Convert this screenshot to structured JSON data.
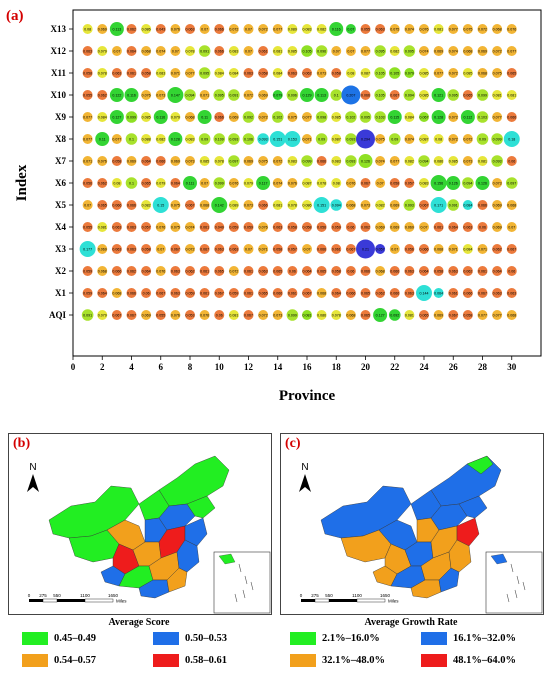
{
  "chart_data": [
    {
      "type": "scatter",
      "panel_label": "(a)",
      "xlabel": "Province",
      "ylabel": "Index",
      "x_ticks": [
        0,
        2,
        4,
        6,
        8,
        10,
        12,
        14,
        16,
        18,
        20,
        22,
        24,
        26,
        28,
        30
      ],
      "xlim": [
        0,
        32
      ],
      "rows": [
        "X13",
        "X12",
        "X11",
        "X10",
        "X9",
        "X8",
        "X7",
        "X6",
        "X5",
        "X4",
        "X3",
        "X2",
        "X1",
        "AQI"
      ],
      "highlights": [
        {
          "row": "X13",
          "x": 3,
          "value": 0.113,
          "color": "#33d433"
        },
        {
          "row": "X13",
          "x": 19,
          "value": 0.116,
          "color": "#33d433"
        },
        {
          "row": "X12",
          "x": 16,
          "value": 0.105,
          "color": "#8ee024"
        },
        {
          "row": "X11",
          "x": 22,
          "value": 0.105,
          "color": "#8ee024"
        },
        {
          "row": "X11",
          "x": 23,
          "value": 0.105,
          "color": "#8ee024"
        },
        {
          "row": "X10",
          "x": 3,
          "value": 0.122,
          "color": "#33d433"
        },
        {
          "row": "X10",
          "x": 7,
          "value": 0.147,
          "color": "#33d433"
        },
        {
          "row": "X10",
          "x": 14,
          "value": 0.113,
          "color": "#33d433"
        },
        {
          "row": "X10",
          "x": 16,
          "value": 0.129,
          "color": "#33d433"
        },
        {
          "row": "X10",
          "x": 19,
          "value": 0.207,
          "color": "#1d73e6"
        },
        {
          "row": "X10",
          "x": 25,
          "value": 0.121,
          "color": "#33d433"
        },
        {
          "row": "X9",
          "x": 4,
          "value": 0.127,
          "color": "#8ee024"
        },
        {
          "row": "X9",
          "x": 24,
          "value": 0.115,
          "color": "#8ee024"
        },
        {
          "row": "X8",
          "x": 2,
          "value": 0.11,
          "color": "#33d433"
        },
        {
          "row": "X8",
          "x": 7,
          "value": 0.128,
          "color": "#33d433"
        },
        {
          "row": "X8",
          "x": 13,
          "value": 0.151,
          "color": "#2ee0d6"
        },
        {
          "row": "X8",
          "x": 14,
          "value": 0.153,
          "color": "#2ee0d6"
        },
        {
          "row": "X8",
          "x": 20,
          "value": 0.294,
          "color": "#3a3ad8"
        },
        {
          "row": "X8",
          "x": 30,
          "value": 0.18,
          "color": "#2ee0d6"
        },
        {
          "row": "X7",
          "x": 20,
          "value": 0.126,
          "color": "#8ee024"
        },
        {
          "row": "X6",
          "x": 13,
          "value": 0.117,
          "color": "#33d433"
        },
        {
          "row": "X6",
          "x": 25,
          "value": 0.156,
          "color": "#33d433"
        },
        {
          "row": "X6",
          "x": 26,
          "value": 0.126,
          "color": "#33d433"
        },
        {
          "row": "X5",
          "x": 6,
          "value": 0.15,
          "color": "#2ee0d6"
        },
        {
          "row": "X5",
          "x": 10,
          "value": 0.142,
          "color": "#33d433"
        },
        {
          "row": "X5",
          "x": 18,
          "value": 0.151,
          "color": "#2ee0d6"
        },
        {
          "row": "X5",
          "x": 27,
          "value": 0.171,
          "color": "#2ee0d6"
        },
        {
          "row": "X3",
          "x": 1,
          "value": 0.177,
          "color": "#2ee0d6"
        },
        {
          "row": "X3",
          "x": 21,
          "value": 0.21,
          "color": "#3a3ad8"
        },
        {
          "row": "X1",
          "x": 25,
          "value": 0.144,
          "color": "#2ee0d6"
        },
        {
          "row": "AQI",
          "x": 16,
          "value": 0.099,
          "color": "#8ee024"
        },
        {
          "row": "AQI",
          "x": 22,
          "value": 0.127,
          "color": "#33d433"
        }
      ],
      "base_values": [
        [
          "0.08",
          "0.069",
          "0.113",
          "0.062",
          "0.086",
          "0.043",
          "0.076",
          "0.063",
          "0.07",
          "0.066",
          "0.072",
          "0.07",
          "0.072",
          "0.077",
          "0.089",
          "0.083",
          "0.082",
          "0.116",
          "0.07",
          "0.055",
          "0.063",
          "0.075",
          "0.074",
          "0.076",
          "0.081",
          "0.077",
          "0.075",
          "0.072",
          "0.068",
          "0.076"
        ],
        [
          "0.063",
          "0.079",
          "0.07",
          "0.064",
          "0.068",
          "0.074",
          "0.07",
          "0.078",
          "0.091",
          "0.066",
          "0.083",
          "0.07",
          "0.061",
          "0.081",
          "0.085",
          "0.105",
          "0.096",
          "0.07",
          "0.07",
          "0.077",
          "0.095",
          "0.082",
          "0.095",
          "0.074",
          "0.069",
          "0.074",
          "0.068",
          "0.069",
          "0.072",
          "0.077"
        ],
        [
          "0.058",
          "0.078",
          "0.063",
          "0.061",
          "0.058",
          "0.083",
          "0.071",
          "0.077",
          "0.095",
          "0.084",
          "0.084",
          "0.063",
          "0.058",
          "0.084",
          "0.063",
          "0.062",
          "0.073",
          "0.058",
          "0.08",
          "0.087",
          "0.105",
          "0.105",
          "0.079",
          "0.085",
          "0.077",
          "0.072",
          "0.085",
          "0.068",
          "0.075",
          "0.065"
        ],
        [
          "0.055",
          "0.062",
          "0.122",
          "0.116",
          "0.076",
          "0.073",
          "0.147",
          "0.094",
          "0.071",
          "0.095",
          "0.091",
          "0.072",
          "0.069",
          "0.079",
          "0.096",
          "0.129",
          "0.113",
          "0.1",
          "0.207",
          "0.066",
          "0.105",
          "0.067",
          "0.094",
          "0.085",
          "0.121",
          "0.095",
          "0.065",
          "0.099",
          "0.081",
          "0.081"
        ],
        [
          "0.077",
          "0.084",
          "0.127",
          "0.099",
          "0.085",
          "0.116",
          "0.079",
          "0.068",
          "0.11",
          "0.066",
          "0.069",
          "0.092",
          "0.072",
          "0.102",
          "0.075",
          "0.077",
          "0.098",
          "0.085",
          "0.102",
          "0.095",
          "0.103",
          "0.115",
          "0.084",
          "0.067",
          "0.128",
          "0.072",
          "0.112",
          "0.103",
          "0.077",
          "0.066"
        ],
        [
          "0.077",
          "0.11",
          "0.077",
          "0.1",
          "0.088",
          "0.082",
          "0.128",
          "0.083",
          "0.09",
          "0.109",
          "0.093",
          "0.106",
          "0.093",
          "0.151",
          "0.153",
          "0.071",
          "0.09",
          "0.087",
          "0.093",
          "0.294",
          "0.075",
          "0.09",
          "0.074",
          "0.087",
          "0.08",
          "0.072",
          "0.072",
          "0.09",
          "0.099",
          "0.18"
        ],
        [
          "0.071",
          "0.076",
          "0.058",
          "0.069",
          "0.064",
          "0.066",
          "0.069",
          "0.073",
          "0.085",
          "0.078",
          "0.097",
          "0.069",
          "0.075",
          "0.072",
          "0.083",
          "0.099",
          "0.066",
          "0.083",
          "0.093",
          "0.126",
          "0.074",
          "0.077",
          "0.082",
          "0.094",
          "0.086",
          "0.085",
          "0.073",
          "0.081",
          "0.093",
          "0.06"
        ],
        [
          "0.056",
          "0.062",
          "0.08",
          "0.1",
          "0.065",
          "0.079",
          "0.064",
          "0.111",
          "0.07",
          "0.099",
          "0.076",
          "0.079",
          "0.117",
          "0.074",
          "0.076",
          "0.087",
          "0.078",
          "0.08",
          "0.076",
          "0.067",
          "0.07",
          "0.058",
          "0.057",
          "0.083",
          "0.156",
          "0.126",
          "0.094",
          "0.126",
          "0.073",
          "0.097"
        ],
        [
          "0.07",
          "0.065",
          "0.066",
          "0.066",
          "0.082",
          "0.15",
          "0.075",
          "0.067",
          "0.068",
          "0.142",
          "0.089",
          "0.073",
          "0.066",
          "0.081",
          "0.078",
          "0.086",
          "0.151",
          "0.094",
          "0.068",
          "0.073",
          "0.082",
          "0.069",
          "0.093",
          "0.067",
          "0.171",
          "0.091",
          "0.084",
          "0.066",
          "0.069",
          "0.068"
        ],
        [
          "0.055",
          "0.081",
          "0.063",
          "0.063",
          "0.057",
          "0.076",
          "0.075",
          "0.074",
          "0.061",
          "0.049",
          "0.059",
          "0.059",
          "0.076",
          "0.063",
          "0.058",
          "0.058",
          "0.056",
          "0.059",
          "0.06",
          "0.062",
          "0.069",
          "0.069",
          "0.069",
          "0.07",
          "0.061",
          "0.064",
          "0.063",
          "0.06",
          "0.069",
          "0.07"
        ],
        [
          "0.177",
          "0.069",
          "0.063",
          "0.063",
          "0.058",
          "0.07",
          "0.067",
          "0.072",
          "0.067",
          "0.063",
          "0.063",
          "0.07",
          "0.071",
          "0.058",
          "0.057",
          "0.07",
          "0.066",
          "0.061",
          "0.067",
          "0.21",
          "0.057",
          "0.07",
          "0.056",
          "0.066",
          "0.068",
          "0.071",
          "0.084",
          "0.071",
          "0.062",
          "0.067"
        ],
        [
          "0.059",
          "0.068",
          "0.066",
          "0.062",
          "0.064",
          "0.076",
          "0.063",
          "0.062",
          "0.061",
          "0.065",
          "0.072",
          "0.061",
          "0.063",
          "0.065",
          "0.06",
          "0.064",
          "0.065",
          "0.058",
          "0.06",
          "0.066",
          "0.068",
          "0.066",
          "0.063",
          "0.064",
          "0.058",
          "0.063",
          "0.062",
          "0.061",
          "0.064",
          "0.06"
        ],
        [
          "0.059",
          "0.064",
          "0.068",
          "0.066",
          "0.06",
          "0.067",
          "0.063",
          "0.059",
          "0.061",
          "0.067",
          "0.059",
          "0.061",
          "0.065",
          "0.066",
          "0.061",
          "0.067",
          "0.068",
          "0.064",
          "0.066",
          "0.065",
          "0.062",
          "0.066",
          "0.063",
          "0.144",
          "0.064",
          "0.061",
          "0.066",
          "0.067",
          "0.063",
          "0.063"
        ],
        [
          "0.091",
          "0.079",
          "0.067",
          "0.067",
          "0.069",
          "0.055",
          "0.076",
          "0.053",
          "0.076",
          "0.06",
          "0.081",
          "0.067",
          "0.072",
          "0.073",
          "0.099",
          "0.081",
          "0.086",
          "0.078",
          "0.068",
          "0.065",
          "0.127",
          "0.092",
          "0.081",
          "0.065",
          "0.069",
          "0.067",
          "0.058",
          "0.077",
          "0.077",
          "0.068"
        ]
      ]
    },
    {
      "type": "choropleth",
      "panel_label": "(b)",
      "title": "Average Score",
      "legend": [
        {
          "label": "0.45–0.49",
          "color": "#22ee22"
        },
        {
          "label": "0.50–0.53",
          "color": "#1f6fe8"
        },
        {
          "label": "0.54–0.57",
          "color": "#f2a01c"
        },
        {
          "label": "0.58–0.61",
          "color": "#ee1c1c"
        }
      ]
    },
    {
      "type": "choropleth",
      "panel_label": "(c)",
      "title": "Average Growth Rate",
      "legend": [
        {
          "label": "2.1%–16.0%",
          "color": "#22ee22"
        },
        {
          "label": "16.1%–32.0%",
          "color": "#1f6fe8"
        },
        {
          "label": "32.1%–48.0%",
          "color": "#f2a01c"
        },
        {
          "label": "48.1%–64.0%",
          "color": "#ee1c1c"
        }
      ]
    }
  ],
  "maps": {
    "north_label": "N",
    "scale_ticks": [
      "0",
      "275",
      "550",
      "1100",
      "1650"
    ],
    "scale_unit": "Miles"
  }
}
